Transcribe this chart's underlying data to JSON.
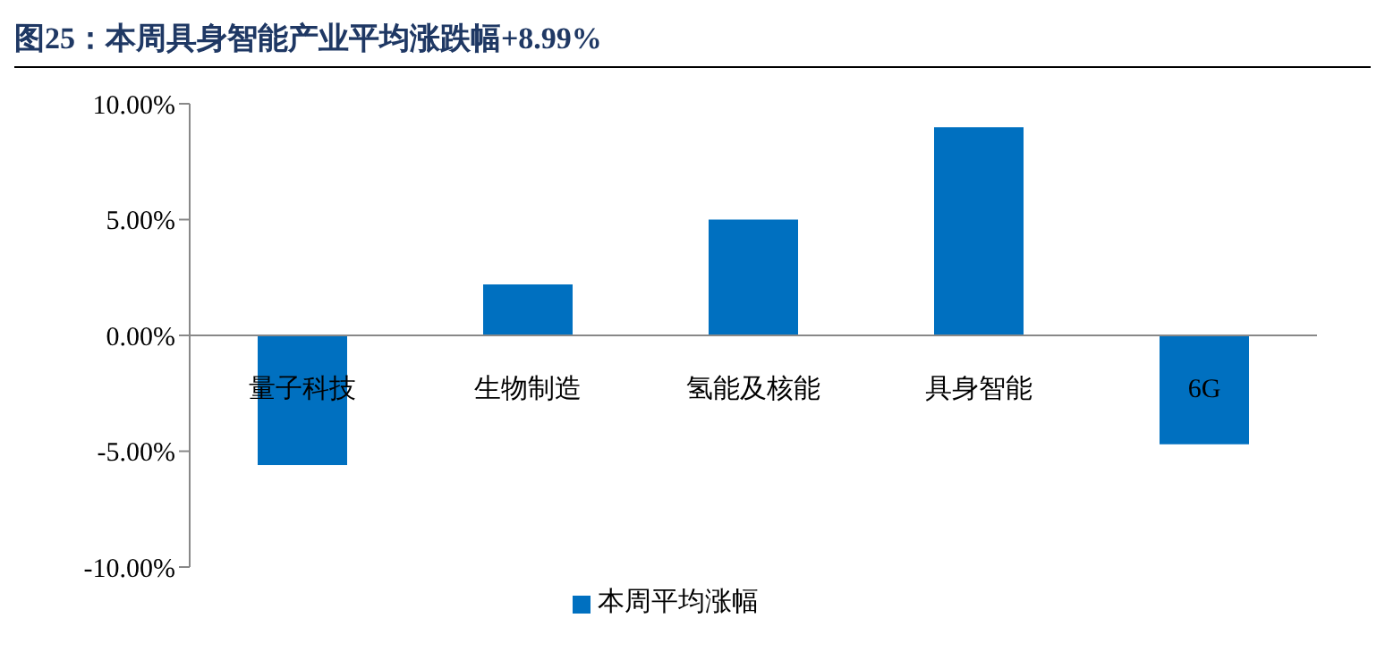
{
  "chart_data": {
    "type": "bar",
    "title": "图25：本周具身智能产业平均涨跌幅+8.99%",
    "categories": [
      "量子科技",
      "生物制造",
      "氢能及核能",
      "具身智能",
      "6G"
    ],
    "series": [
      {
        "name": "本周平均涨幅",
        "color": "#0070c0",
        "values": [
          -5.6,
          2.2,
          5.0,
          8.99,
          -4.7
        ]
      }
    ],
    "ylim": [
      -10,
      10
    ],
    "yticks": [
      {
        "value": -10,
        "label": "-10.00%"
      },
      {
        "value": -5,
        "label": "-5.00%"
      },
      {
        "value": 0,
        "label": "0.00%"
      },
      {
        "value": 5,
        "label": "5.00%"
      },
      {
        "value": 10,
        "label": "10.00%"
      }
    ],
    "legend": "bottom"
  }
}
